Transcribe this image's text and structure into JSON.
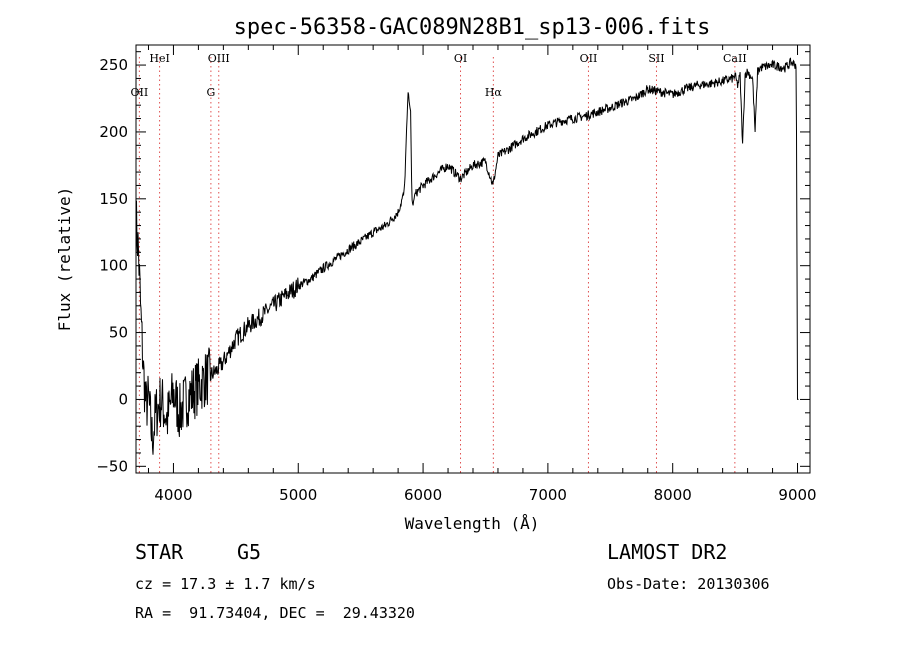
{
  "chart_data": {
    "type": "line",
    "title": "spec-56358-GAC089N28B1_sp13-006.fits",
    "xlabel": "Wavelength (Å)",
    "ylabel": "Flux (relative)",
    "xlim": [
      3700,
      9100
    ],
    "ylim": [
      -55,
      265
    ],
    "xticks": [
      4000,
      5000,
      6000,
      7000,
      8000,
      9000
    ],
    "yticks": [
      -50,
      0,
      50,
      100,
      150,
      200,
      250
    ],
    "grid": false,
    "series": [
      {
        "x": [
          3700,
          3720,
          3740,
          3760,
          3780,
          3800,
          3830,
          3860,
          3900,
          3950,
          4000,
          4050,
          4100,
          4150,
          4200,
          4250,
          4300,
          4350,
          4400,
          4500,
          4600,
          4700,
          4800,
          4900,
          5000,
          5100,
          5200,
          5300,
          5400,
          5500,
          5600,
          5700,
          5800,
          5850,
          5880,
          5900,
          5910,
          5920,
          5930,
          5950,
          6000,
          6100,
          6200,
          6300,
          6400,
          6500,
          6560,
          6600,
          6700,
          6800,
          6900,
          7000,
          7100,
          7200,
          7300,
          7400,
          7500,
          7600,
          7700,
          7800,
          7900,
          8000,
          8100,
          8200,
          8300,
          8400,
          8480,
          8500,
          8520,
          8540,
          8560,
          8580,
          8600,
          8640,
          8660,
          8680,
          8700,
          8800,
          8900,
          8950,
          8990,
          9000,
          9010
        ],
        "y": [
          135,
          110,
          60,
          20,
          -5,
          0,
          -30,
          -10,
          0,
          -15,
          5,
          -10,
          0,
          5,
          10,
          15,
          18,
          22,
          28,
          45,
          55,
          62,
          70,
          78,
          85,
          90,
          98,
          105,
          112,
          118,
          125,
          130,
          140,
          155,
          230,
          215,
          150,
          145,
          152,
          155,
          160,
          168,
          175,
          165,
          175,
          178,
          160,
          182,
          188,
          195,
          200,
          205,
          208,
          210,
          212,
          215,
          218,
          222,
          225,
          232,
          230,
          228,
          232,
          235,
          236,
          238,
          240,
          242,
          235,
          242,
          190,
          243,
          245,
          240,
          200,
          245,
          248,
          250,
          248,
          252,
          250,
          0,
          0
        ]
      }
    ],
    "line_markers": [
      {
        "label": "OII",
        "x": 3727,
        "row": "low"
      },
      {
        "label": "HeI",
        "x": 3889,
        "row": "high"
      },
      {
        "label": "G",
        "x": 4300,
        "row": "low"
      },
      {
        "label": "OIII",
        "x": 4363,
        "row": "high"
      },
      {
        "label": "OI",
        "x": 6300,
        "row": "high"
      },
      {
        "label": "Hα",
        "x": 6563,
        "row": "low"
      },
      {
        "label": "OII",
        "x": 7325,
        "row": "high"
      },
      {
        "label": "SII",
        "x": 7870,
        "row": "high"
      },
      {
        "label": "CaII",
        "x": 8498,
        "row": "high"
      }
    ]
  },
  "info": {
    "class_label": "STAR",
    "subclass": "G5",
    "survey": "LAMOST DR2",
    "cz": "cz = 17.3 ± 1.7 km/s",
    "obs_date": "Obs-Date: 20130306",
    "coords": "RA =  91.73404, DEC =  29.43320"
  }
}
